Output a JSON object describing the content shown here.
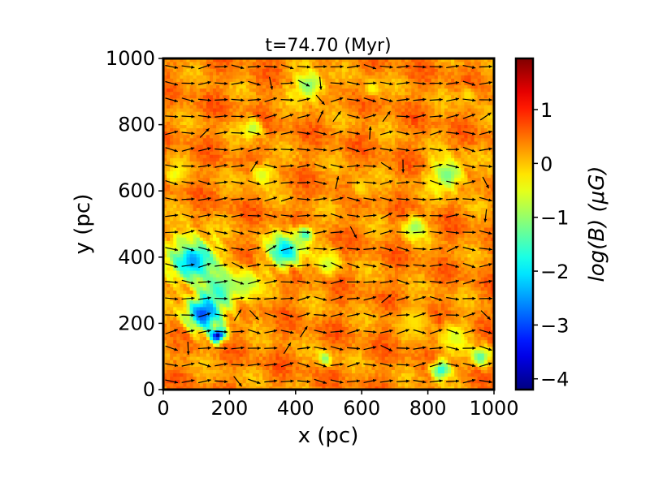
{
  "chart_data": {
    "type": "heatmap",
    "title": "t=74.70 (Myr)",
    "xlabel": "x (pc)",
    "ylabel": "y (pc)",
    "xlim": [
      0,
      1000
    ],
    "ylim": [
      0,
      1000
    ],
    "x_ticks": [
      "0",
      "200",
      "400",
      "600",
      "800",
      "1000"
    ],
    "y_ticks": [
      "0",
      "200",
      "400",
      "600",
      "800",
      "1000"
    ],
    "colorbar": {
      "label": "log(B) (μG)",
      "range": [
        -4.2,
        1.95
      ],
      "ticks": [
        "−4",
        "−3",
        "−2",
        "−1",
        "0",
        "1"
      ],
      "tick_values": [
        -4,
        -3,
        -2,
        -1,
        0,
        1
      ],
      "colormap": "jet"
    },
    "background_log_B": 0.35,
    "grid": false,
    "overlay": "magnetic field direction arrows",
    "low_field_regions": [
      {
        "x": 300,
        "y": 650,
        "r": 45,
        "min": -0.6
      },
      {
        "x": 270,
        "y": 790,
        "r": 35,
        "min": -0.8
      },
      {
        "x": 440,
        "y": 920,
        "r": 55,
        "min": -1.1
      },
      {
        "x": 630,
        "y": 910,
        "r": 30,
        "min": -0.4
      },
      {
        "x": 595,
        "y": 610,
        "r": 40,
        "min": -0.2
      },
      {
        "x": 860,
        "y": 650,
        "r": 60,
        "min": -1.2
      },
      {
        "x": 760,
        "y": 490,
        "r": 40,
        "min": -1.0
      },
      {
        "x": 90,
        "y": 390,
        "r": 80,
        "min": -2.5
      },
      {
        "x": 170,
        "y": 300,
        "r": 75,
        "min": -1.5
      },
      {
        "x": 250,
        "y": 320,
        "r": 50,
        "min": -0.9
      },
      {
        "x": 370,
        "y": 420,
        "r": 60,
        "min": -2.2
      },
      {
        "x": 430,
        "y": 470,
        "r": 30,
        "min": -1.6
      },
      {
        "x": 500,
        "y": 380,
        "r": 40,
        "min": -0.7
      },
      {
        "x": 120,
        "y": 230,
        "r": 60,
        "min": -3.0
      },
      {
        "x": 165,
        "y": 165,
        "r": 25,
        "min": -4.0
      },
      {
        "x": 60,
        "y": 450,
        "r": 30,
        "min": -0.8
      },
      {
        "x": 490,
        "y": 95,
        "r": 25,
        "min": -1.1
      },
      {
        "x": 840,
        "y": 60,
        "r": 35,
        "min": -1.8
      },
      {
        "x": 960,
        "y": 100,
        "r": 35,
        "min": -1.4
      },
      {
        "x": 760,
        "y": 210,
        "r": 55,
        "min": -0.2
      },
      {
        "x": 35,
        "y": 650,
        "r": 30,
        "min": -0.5
      },
      {
        "x": 880,
        "y": 160,
        "r": 50,
        "min": -0.6
      },
      {
        "x": 920,
        "y": 890,
        "r": 35,
        "min": -0.2
      }
    ]
  }
}
